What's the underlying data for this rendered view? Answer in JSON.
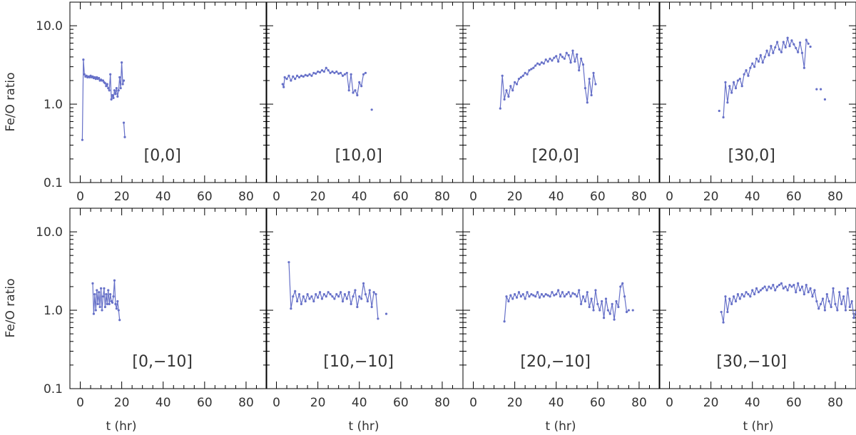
{
  "figure": {
    "ylabel": "Fe/O ratio",
    "xlabel": "t (hr)",
    "line_color": "#6670c8",
    "axis_color": "#000000",
    "text_color": "#333333"
  },
  "chart_data": [
    {
      "type": "line",
      "label": "[0,0]",
      "row": 0,
      "col": 0,
      "xlim": [
        -5,
        90
      ],
      "ylim": [
        0.1,
        20
      ],
      "yscale": "log",
      "xticks": [
        0,
        20,
        40,
        60,
        80
      ],
      "yticks": [
        0.1,
        1.0,
        10.0
      ],
      "x": [
        1,
        1.5,
        2,
        2.5,
        3,
        3.5,
        4,
        4.5,
        5,
        5.5,
        6,
        6.5,
        7,
        7.5,
        8,
        8.5,
        9,
        9.5,
        10,
        10.5,
        11,
        11.5,
        12,
        12.5,
        13,
        13.5,
        14,
        14.5,
        15,
        15.5,
        16,
        16.5,
        17,
        17.5,
        18,
        18.5,
        19,
        19.5,
        20,
        20.5,
        21
      ],
      "y": [
        0.35,
        3.7,
        2.4,
        2.25,
        2.3,
        2.2,
        2.25,
        2.2,
        2.3,
        2.2,
        2.25,
        2.15,
        2.2,
        2.1,
        2.2,
        2.1,
        2.15,
        2.0,
        2.05,
        2.0,
        2.0,
        1.9,
        1.85,
        1.7,
        1.8,
        1.6,
        1.5,
        2.4,
        1.15,
        1.3,
        1.2,
        1.5,
        1.35,
        1.6,
        1.25,
        1.5,
        2.2,
        1.6,
        3.4,
        1.8,
        2.0
      ],
      "x2": [
        21,
        21.5
      ],
      "y2": [
        0.58,
        0.38
      ]
    },
    {
      "type": "line",
      "label": "[10,0]",
      "row": 0,
      "col": 1,
      "xlim": [
        -5,
        90
      ],
      "ylim": [
        0.1,
        20
      ],
      "yscale": "log",
      "xticks": [
        0,
        20,
        40,
        60,
        80
      ],
      "yticks": [
        0.1,
        1.0,
        10.0
      ],
      "x": [
        3,
        3.5,
        4,
        5,
        6,
        7,
        8,
        9,
        10,
        11,
        12,
        13,
        14,
        15,
        16,
        17,
        18,
        19,
        20,
        21,
        22,
        23,
        24,
        25,
        26,
        27,
        28,
        29,
        30,
        31,
        32,
        33,
        34,
        35,
        36,
        37,
        38,
        39,
        40,
        41,
        42,
        43
      ],
      "y": [
        1.8,
        1.65,
        2.2,
        2.1,
        2.3,
        2.0,
        2.25,
        2.1,
        2.3,
        2.2,
        2.3,
        2.25,
        2.35,
        2.3,
        2.4,
        2.3,
        2.5,
        2.45,
        2.6,
        2.55,
        2.7,
        2.6,
        2.9,
        2.7,
        2.5,
        2.6,
        2.5,
        2.6,
        2.45,
        2.5,
        2.3,
        2.4,
        2.5,
        1.5,
        2.4,
        1.4,
        1.5,
        1.3,
        1.9,
        1.7,
        2.4,
        2.5
      ],
      "x2": [
        46
      ],
      "y2": [
        0.85
      ]
    },
    {
      "type": "line",
      "label": "[20,0]",
      "row": 0,
      "col": 2,
      "xlim": [
        -5,
        90
      ],
      "ylim": [
        0.1,
        20
      ],
      "yscale": "log",
      "xticks": [
        0,
        20,
        40,
        60,
        80
      ],
      "yticks": [
        0.1,
        1.0,
        10.0
      ],
      "x": [
        13,
        14,
        15,
        16,
        17,
        18,
        19,
        20,
        21,
        22,
        23,
        24,
        25,
        26,
        27,
        28,
        29,
        30,
        31,
        32,
        33,
        34,
        35,
        36,
        37,
        38,
        39,
        40,
        41,
        42,
        43,
        44,
        45,
        46,
        47,
        48,
        49,
        50,
        51,
        52,
        53,
        54,
        55,
        56,
        57,
        58,
        59
      ],
      "y": [
        0.88,
        2.3,
        1.15,
        1.5,
        1.25,
        1.7,
        1.5,
        1.9,
        1.8,
        2.1,
        2.2,
        2.3,
        2.5,
        2.4,
        2.7,
        2.8,
        2.9,
        3.1,
        3.3,
        3.2,
        3.4,
        3.3,
        3.7,
        3.5,
        3.8,
        3.6,
        3.9,
        4.1,
        3.5,
        4.3,
        4.0,
        3.8,
        4.5,
        4.2,
        3.4,
        4.8,
        3.5,
        4.3,
        2.7,
        3.8,
        3.2,
        1.6,
        1.05,
        2.1,
        1.3,
        2.5,
        1.8
      ]
    },
    {
      "type": "line",
      "label": "[30,0]",
      "row": 0,
      "col": 3,
      "xlim": [
        -5,
        90
      ],
      "ylim": [
        0.1,
        20
      ],
      "yscale": "log",
      "xticks": [
        0,
        20,
        40,
        60,
        80
      ],
      "yticks": [
        0.1,
        1.0,
        10.0
      ],
      "x": [
        26,
        27,
        28,
        29,
        30,
        31,
        32,
        33,
        34,
        35,
        36,
        37,
        38,
        39,
        40,
        41,
        42,
        43,
        44,
        45,
        46,
        47,
        48,
        49,
        50,
        51,
        52,
        53,
        54,
        55,
        56,
        57,
        58,
        59,
        60,
        61,
        62,
        63,
        64,
        65,
        66,
        67
      ],
      "y": [
        0.68,
        1.9,
        1.05,
        1.7,
        1.4,
        1.9,
        1.6,
        2.0,
        2.1,
        1.7,
        2.4,
        2.7,
        2.3,
        2.9,
        3.3,
        3.0,
        3.8,
        3.5,
        4.2,
        3.4,
        4.0,
        4.8,
        4.2,
        5.5,
        4.5,
        5.3,
        6.2,
        5.0,
        4.6,
        6.2,
        5.3,
        7.0,
        5.5,
        6.5,
        5.8,
        5.2,
        4.6,
        6.1,
        4.5,
        2.9,
        6.6,
        5.9
      ],
      "x2": [
        24,
        68,
        71,
        73,
        75
      ],
      "y2": [
        0.82,
        5.4,
        1.55,
        1.55,
        1.15
      ]
    },
    {
      "type": "line",
      "label": "[0,−10]",
      "row": 1,
      "col": 0,
      "xlim": [
        -5,
        90
      ],
      "ylim": [
        0.1,
        20
      ],
      "yscale": "log",
      "xticks": [
        0,
        20,
        40,
        60,
        80
      ],
      "yticks": [
        0.1,
        1.0,
        10.0
      ],
      "x": [
        6,
        6.5,
        7,
        7.5,
        8,
        8.5,
        9,
        9.5,
        10,
        10.5,
        11,
        11.5,
        12,
        12.5,
        13,
        13.5,
        14,
        14.5,
        15,
        15.5,
        16,
        16.5,
        17,
        17.5,
        18,
        18.5,
        19
      ],
      "y": [
        2.2,
        0.9,
        1.6,
        1.0,
        1.8,
        1.2,
        1.7,
        1.1,
        1.9,
        1.0,
        1.5,
        1.9,
        1.1,
        1.6,
        1.2,
        1.8,
        1.2,
        1.6,
        1.3,
        1.25,
        1.5,
        2.4,
        1.2,
        1.05,
        1.3,
        1.0,
        0.75
      ]
    },
    {
      "type": "line",
      "label": "[10,−10]",
      "row": 1,
      "col": 1,
      "xlim": [
        -5,
        90
      ],
      "ylim": [
        0.1,
        20
      ],
      "yscale": "log",
      "xticks": [
        0,
        20,
        40,
        60,
        80
      ],
      "yticks": [
        0.1,
        1.0,
        10.0
      ],
      "x": [
        6,
        7,
        8,
        9,
        10,
        11,
        12,
        13,
        14,
        15,
        16,
        17,
        18,
        19,
        20,
        21,
        22,
        23,
        24,
        25,
        26,
        27,
        28,
        29,
        30,
        31,
        32,
        33,
        34,
        35,
        36,
        37,
        38,
        39,
        40,
        41,
        42,
        43,
        44,
        45,
        46,
        47,
        48,
        49
      ],
      "y": [
        4.1,
        1.05,
        1.5,
        1.75,
        1.3,
        1.6,
        1.2,
        1.5,
        1.3,
        1.6,
        1.4,
        1.5,
        1.3,
        1.6,
        1.45,
        1.7,
        1.4,
        1.6,
        1.5,
        1.7,
        1.6,
        1.5,
        1.4,
        1.6,
        1.5,
        1.7,
        1.3,
        1.6,
        1.4,
        1.7,
        1.2,
        1.5,
        1.8,
        1.1,
        1.5,
        1.4,
        2.2,
        1.6,
        1.3,
        1.8,
        1.1,
        1.7,
        1.6,
        0.78
      ],
      "x2": [
        53
      ],
      "y2": [
        0.9
      ]
    },
    {
      "type": "line",
      "label": "[20,−10]",
      "row": 1,
      "col": 2,
      "xlim": [
        -5,
        90
      ],
      "ylim": [
        0.1,
        20
      ],
      "yscale": "log",
      "xticks": [
        0,
        20,
        40,
        60,
        80
      ],
      "yticks": [
        0.1,
        1.0,
        10.0
      ],
      "x": [
        15,
        16,
        17,
        18,
        19,
        20,
        21,
        22,
        23,
        24,
        25,
        26,
        27,
        28,
        29,
        30,
        31,
        32,
        33,
        34,
        35,
        36,
        37,
        38,
        39,
        40,
        41,
        42,
        43,
        44,
        45,
        46,
        47,
        48,
        49,
        50,
        51,
        52,
        53,
        54,
        55,
        56,
        57,
        58,
        59,
        60,
        61,
        62,
        63,
        64,
        65,
        66,
        67,
        68,
        69,
        70,
        71,
        72,
        73,
        74,
        75
      ],
      "y": [
        0.72,
        1.5,
        1.3,
        1.55,
        1.4,
        1.6,
        1.45,
        1.7,
        1.5,
        1.6,
        1.4,
        1.7,
        1.5,
        1.6,
        1.55,
        1.5,
        1.7,
        1.45,
        1.6,
        1.5,
        1.6,
        1.55,
        1.5,
        1.7,
        1.55,
        1.6,
        1.8,
        1.5,
        1.7,
        1.5,
        1.6,
        1.7,
        1.5,
        1.65,
        1.6,
        1.5,
        1.8,
        1.2,
        1.5,
        1.3,
        1.7,
        1.1,
        1.4,
        1.0,
        1.8,
        1.2,
        1.0,
        1.3,
        0.8,
        1.4,
        1.0,
        0.9,
        1.2,
        0.76,
        1.3,
        1.1,
        2.0,
        2.2,
        1.5,
        0.95,
        1.0
      ],
      "x2": [
        77
      ],
      "y2": [
        1.0
      ]
    },
    {
      "type": "line",
      "label": "[30,−10]",
      "row": 1,
      "col": 3,
      "xlim": [
        -5,
        90
      ],
      "ylim": [
        0.1,
        20
      ],
      "yscale": "log",
      "xticks": [
        0,
        20,
        40,
        60,
        80
      ],
      "yticks": [
        0.1,
        1.0,
        10.0
      ],
      "x": [
        25,
        26,
        27,
        28,
        29,
        30,
        31,
        32,
        33,
        34,
        35,
        36,
        37,
        38,
        39,
        40,
        41,
        42,
        43,
        44,
        45,
        46,
        47,
        48,
        49,
        50,
        51,
        52,
        53,
        54,
        55,
        56,
        57,
        58,
        59,
        60,
        61,
        62,
        63,
        64,
        65,
        66,
        67,
        68,
        69,
        70,
        71,
        72,
        73,
        74,
        75,
        76,
        77,
        78,
        79,
        80,
        81,
        82,
        83,
        84,
        85,
        86,
        87,
        88,
        89,
        90
      ],
      "y": [
        0.95,
        0.7,
        1.5,
        0.95,
        1.4,
        1.2,
        1.5,
        1.3,
        1.6,
        1.4,
        1.6,
        1.5,
        1.7,
        1.6,
        1.5,
        1.8,
        1.6,
        1.9,
        1.7,
        1.8,
        1.9,
        2.0,
        1.8,
        2.0,
        1.9,
        2.1,
        1.8,
        2.0,
        2.1,
        2.2,
        1.9,
        2.0,
        1.8,
        2.1,
        2.0,
        2.1,
        1.7,
        2.2,
        1.8,
        2.0,
        1.6,
        2.1,
        1.7,
        1.9,
        1.5,
        1.8,
        1.3,
        1.05,
        1.2,
        1.4,
        1.0,
        1.6,
        1.3,
        1.1,
        1.9,
        1.2,
        1.0,
        1.7,
        1.2,
        1.5,
        1.0,
        1.9,
        1.1,
        1.3,
        0.8,
        0.95
      ]
    }
  ]
}
